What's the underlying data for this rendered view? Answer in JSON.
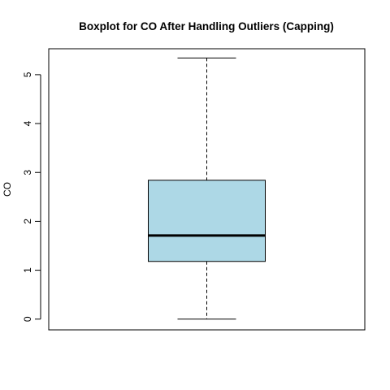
{
  "chart_data": {
    "type": "boxplot",
    "title": "Boxplot for CO After Handling Outliers (Capping)",
    "xlabel": "",
    "ylabel": "CO",
    "ylim": [
      -0.22,
      5.53
    ],
    "yticks": [
      "0",
      "1",
      "2",
      "3",
      "4",
      "5"
    ],
    "series": [
      {
        "whisker_low": 0.0,
        "q1": 1.18,
        "median": 1.71,
        "q3": 2.84,
        "whisker_high": 5.34
      }
    ],
    "box_color": "#add8e6",
    "grid": false
  }
}
